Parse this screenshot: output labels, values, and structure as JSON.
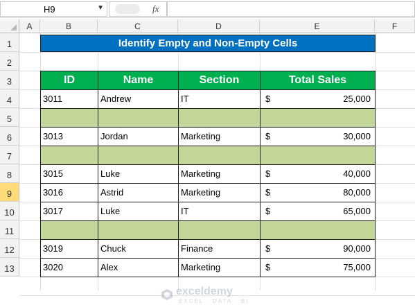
{
  "name_box": {
    "value": "H9"
  },
  "formula_bar": {
    "fx_label": "fx",
    "formula": ""
  },
  "columns": [
    "A",
    "B",
    "C",
    "D",
    "E",
    "F"
  ],
  "rows": [
    "1",
    "2",
    "3",
    "4",
    "5",
    "6",
    "7",
    "8",
    "9",
    "10",
    "11",
    "12",
    "13"
  ],
  "active_row": "9",
  "title": "Identify Empty and Non-Empty Cells",
  "table": {
    "headers": [
      "ID",
      "Name",
      "Section",
      "Total Sales"
    ],
    "currency_symbol": "$",
    "rows": [
      {
        "id": "3011",
        "name": "Andrew",
        "section": "IT",
        "sales": "25,000"
      },
      {
        "id": "",
        "name": "",
        "section": "",
        "sales": ""
      },
      {
        "id": "3013",
        "name": "Jordan",
        "section": "Marketing",
        "sales": "30,000"
      },
      {
        "id": "",
        "name": "",
        "section": "",
        "sales": ""
      },
      {
        "id": "3015",
        "name": "Luke",
        "section": "Marketing",
        "sales": "40,000"
      },
      {
        "id": "3016",
        "name": "Astrid",
        "section": "Marketing",
        "sales": "80,000"
      },
      {
        "id": "3017",
        "name": "Luke",
        "section": "IT",
        "sales": "65,000"
      },
      {
        "id": "",
        "name": "",
        "section": "",
        "sales": ""
      },
      {
        "id": "3019",
        "name": "Chuck",
        "section": "Finance",
        "sales": "90,000"
      },
      {
        "id": "3020",
        "name": "Alex",
        "section": "Marketing",
        "sales": "75,000"
      }
    ]
  },
  "watermark": {
    "name": "exceldemy",
    "tagline": "EXCEL · DATA · BI"
  },
  "colors": {
    "title_fill": "#0070c0",
    "header_fill": "#00b050",
    "empty_fill": "#c4d79b",
    "active_row_head": "#ffdb7a"
  }
}
